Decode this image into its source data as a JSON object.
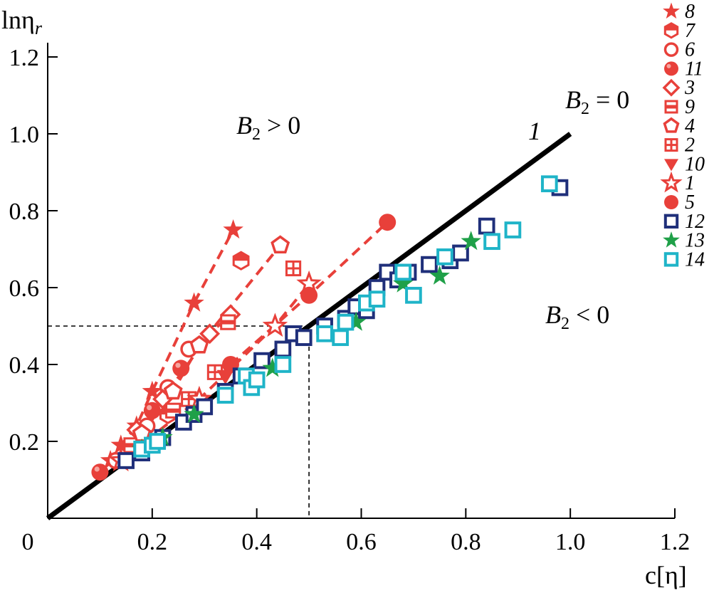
{
  "chart_data": {
    "type": "scatter",
    "title": "",
    "xlabel": "c[η]",
    "ylabel": "lnη",
    "ylabel_sub": "r",
    "xlim": [
      0,
      1.2
    ],
    "ylim": [
      0,
      1.2
    ],
    "x_ticks": [
      "0",
      "0.2",
      "0.4",
      "0.6",
      "0.8",
      "1.0",
      "1.2"
    ],
    "y_ticks": [
      "0.2",
      "0.4",
      "0.6",
      "0.8",
      "1.0",
      "1.2"
    ],
    "x_tick_values": [
      0,
      0.2,
      0.4,
      0.6,
      0.8,
      1.0,
      1.2
    ],
    "y_tick_values": [
      0.2,
      0.4,
      0.6,
      0.8,
      1.0,
      1.2
    ],
    "colors": {
      "red": "#e8403a",
      "navy": "#1f2f7a",
      "green": "#1fa048",
      "cyan": "#1fb4c8",
      "black": "#000000"
    },
    "annotations": {
      "region_above": {
        "prefix": "B",
        "sub": "2",
        "rel": " > 0"
      },
      "region_below": {
        "prefix": "B",
        "sub": "2",
        "rel": " < 0"
      },
      "boundary": {
        "prefix": "B",
        "sub": "2",
        "rel": " = 0"
      },
      "line_label": "1"
    },
    "reference_line": {
      "label": "1",
      "x": [
        0,
        1.0
      ],
      "y": [
        0,
        1.0
      ]
    },
    "guides": {
      "x": 0.5,
      "y": 0.5
    },
    "legend": [
      {
        "label": "8",
        "marker": "star-filled",
        "color": "red"
      },
      {
        "label": "7",
        "marker": "hexagon-half",
        "color": "red"
      },
      {
        "label": "6",
        "marker": "circle-open",
        "color": "red"
      },
      {
        "label": "11",
        "marker": "circle-ball",
        "color": "red"
      },
      {
        "label": "3",
        "marker": "diamond-open",
        "color": "red"
      },
      {
        "label": "9",
        "marker": "square-bar",
        "color": "red"
      },
      {
        "label": "4",
        "marker": "pentagon-open",
        "color": "red"
      },
      {
        "label": "2",
        "marker": "square-grid",
        "color": "red"
      },
      {
        "label": "10",
        "marker": "triangle-down",
        "color": "red"
      },
      {
        "label": "1",
        "marker": "star-open",
        "color": "red"
      },
      {
        "label": "5",
        "marker": "circle-filled",
        "color": "red"
      },
      {
        "label": "12",
        "marker": "square-open",
        "color": "navy"
      },
      {
        "label": "13",
        "marker": "star-filled",
        "color": "green"
      },
      {
        "label": "14",
        "marker": "square-open",
        "color": "cyan"
      }
    ],
    "series": [
      {
        "name": "8",
        "marker": "star-filled",
        "color": "red",
        "trend": true,
        "x": [
          0.12,
          0.14,
          0.17,
          0.2,
          0.28,
          0.355
        ],
        "y": [
          0.15,
          0.19,
          0.24,
          0.33,
          0.56,
          0.75
        ]
      },
      {
        "name": "7",
        "marker": "hexagon-half",
        "color": "red",
        "trend": false,
        "x": [
          0.23,
          0.37
        ],
        "y": [
          0.27,
          0.67
        ]
      },
      {
        "name": "6",
        "marker": "circle-open",
        "color": "red",
        "trend": false,
        "x": [
          0.13,
          0.19,
          0.23,
          0.27
        ],
        "y": [
          0.15,
          0.24,
          0.34,
          0.44
        ]
      },
      {
        "name": "11",
        "marker": "circle-ball",
        "color": "red",
        "trend": false,
        "x": [
          0.1,
          0.2,
          0.255
        ],
        "y": [
          0.12,
          0.28,
          0.39
        ]
      },
      {
        "name": "3",
        "marker": "diamond-open",
        "color": "red",
        "trend": true,
        "x": [
          0.17,
          0.22,
          0.31,
          0.35
        ],
        "y": [
          0.23,
          0.31,
          0.48,
          0.53
        ]
      },
      {
        "name": "9",
        "marker": "square-bar",
        "color": "red",
        "trend": false,
        "x": [
          0.16,
          0.24,
          0.345
        ],
        "y": [
          0.19,
          0.28,
          0.51
        ]
      },
      {
        "name": "4",
        "marker": "pentagon-open",
        "color": "red",
        "trend": true,
        "x": [
          0.18,
          0.24,
          0.29,
          0.445
        ],
        "y": [
          0.22,
          0.33,
          0.45,
          0.71
        ]
      },
      {
        "name": "2",
        "marker": "square-grid",
        "color": "red",
        "trend": false,
        "x": [
          0.27,
          0.32,
          0.47
        ],
        "y": [
          0.31,
          0.38,
          0.65
        ]
      },
      {
        "name": "10",
        "marker": "triangle-down",
        "color": "red",
        "trend": false,
        "x": [
          0.34
        ],
        "y": [
          0.37
        ]
      },
      {
        "name": "1",
        "marker": "star-open",
        "color": "red",
        "trend": true,
        "x": [
          0.14,
          0.29,
          0.435,
          0.5
        ],
        "y": [
          0.15,
          0.31,
          0.5,
          0.61
        ]
      },
      {
        "name": "5",
        "marker": "circle-filled",
        "color": "red",
        "trend": true,
        "x": [
          0.35,
          0.5,
          0.65
        ],
        "y": [
          0.4,
          0.58,
          0.77
        ]
      },
      {
        "name": "12",
        "marker": "square-open",
        "color": "navy",
        "trend": false,
        "x": [
          0.15,
          0.18,
          0.22,
          0.26,
          0.28,
          0.3,
          0.34,
          0.37,
          0.41,
          0.45,
          0.47,
          0.49,
          0.53,
          0.57,
          0.59,
          0.61,
          0.63,
          0.65,
          0.67,
          0.69,
          0.73,
          0.77,
          0.79,
          0.84,
          0.98
        ],
        "y": [
          0.15,
          0.17,
          0.21,
          0.25,
          0.27,
          0.29,
          0.33,
          0.37,
          0.41,
          0.44,
          0.48,
          0.47,
          0.5,
          0.52,
          0.55,
          0.54,
          0.6,
          0.64,
          0.62,
          0.64,
          0.66,
          0.67,
          0.69,
          0.76,
          0.86
        ]
      },
      {
        "name": "13",
        "marker": "star-filled",
        "color": "green",
        "trend": false,
        "x": [
          0.18,
          0.22,
          0.28,
          0.43,
          0.59,
          0.68,
          0.75,
          0.81
        ],
        "y": [
          0.18,
          0.21,
          0.27,
          0.39,
          0.51,
          0.61,
          0.63,
          0.72
        ]
      },
      {
        "name": "14",
        "marker": "square-open",
        "color": "cyan",
        "trend": false,
        "x": [
          0.18,
          0.2,
          0.21,
          0.34,
          0.38,
          0.39,
          0.4,
          0.45,
          0.53,
          0.56,
          0.57,
          0.61,
          0.63,
          0.68,
          0.7,
          0.76,
          0.85,
          0.89,
          0.96
        ],
        "y": [
          0.18,
          0.19,
          0.2,
          0.32,
          0.37,
          0.34,
          0.36,
          0.4,
          0.48,
          0.47,
          0.51,
          0.56,
          0.57,
          0.64,
          0.58,
          0.68,
          0.72,
          0.75,
          0.87
        ]
      }
    ]
  }
}
